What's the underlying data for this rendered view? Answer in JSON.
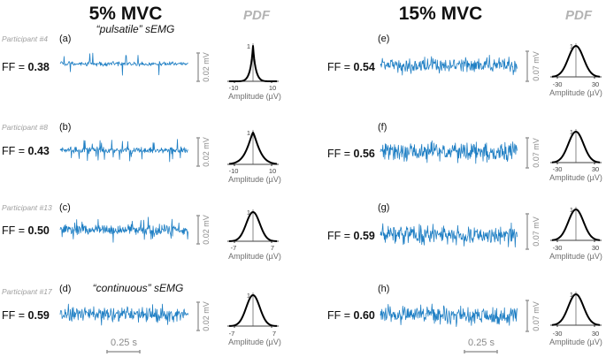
{
  "chart_data": {
    "type": "line",
    "title": "PDF",
    "xlabel": "Amplitude (µV)",
    "time_scalebar": "0.25 s",
    "conditions": [
      {
        "title": "5% MVC",
        "amplitude_scalebar": "0.02 mV",
        "panels": [
          {
            "label": "(a)",
            "participant": "Participant #4",
            "ff_label": "FF = ",
            "ff": "0.38",
            "annotation": "“pulsatile” sEMG",
            "pdf_xticks": [
              "-10",
              "10"
            ],
            "pdf_peak": "1",
            "style": "pulsatile"
          },
          {
            "label": "(b)",
            "participant": "Participant #8",
            "ff_label": "FF = ",
            "ff": "0.43",
            "annotation": "",
            "pdf_xticks": [
              "-10",
              "10"
            ],
            "pdf_peak": "1",
            "style": "semi"
          },
          {
            "label": "(c)",
            "participant": "Participant #13",
            "ff_label": "FF = ",
            "ff": "0.50",
            "annotation": "",
            "pdf_xticks": [
              "-7",
              "7"
            ],
            "pdf_peak": "1",
            "style": "mixed"
          },
          {
            "label": "(d)",
            "participant": "Participant #17",
            "ff_label": "FF = ",
            "ff": "0.59",
            "annotation": "“continuous” sEMG",
            "pdf_xticks": [
              "-7",
              "7"
            ],
            "pdf_peak": "1",
            "style": "continuous"
          }
        ]
      },
      {
        "title": "15% MVC",
        "amplitude_scalebar": "0.07 mV",
        "panels": [
          {
            "label": "(e)",
            "ff_label": "FF = ",
            "ff": "0.54",
            "pdf_xticks": [
              "-30",
              "30"
            ],
            "pdf_peak": "1",
            "style": "continuous"
          },
          {
            "label": "(f)",
            "ff_label": "FF = ",
            "ff": "0.56",
            "pdf_xticks": [
              "-30",
              "30"
            ],
            "pdf_peak": "1",
            "style": "continuous"
          },
          {
            "label": "(g)",
            "ff_label": "FF = ",
            "ff": "0.59",
            "pdf_xticks": [
              "-30",
              "30"
            ],
            "pdf_peak": "1",
            "style": "continuous"
          },
          {
            "label": "(h)",
            "ff_label": "FF = ",
            "ff": "0.60",
            "pdf_xticks": [
              "-30",
              "30"
            ],
            "pdf_peak": "1",
            "style": "continuous"
          }
        ]
      }
    ]
  }
}
